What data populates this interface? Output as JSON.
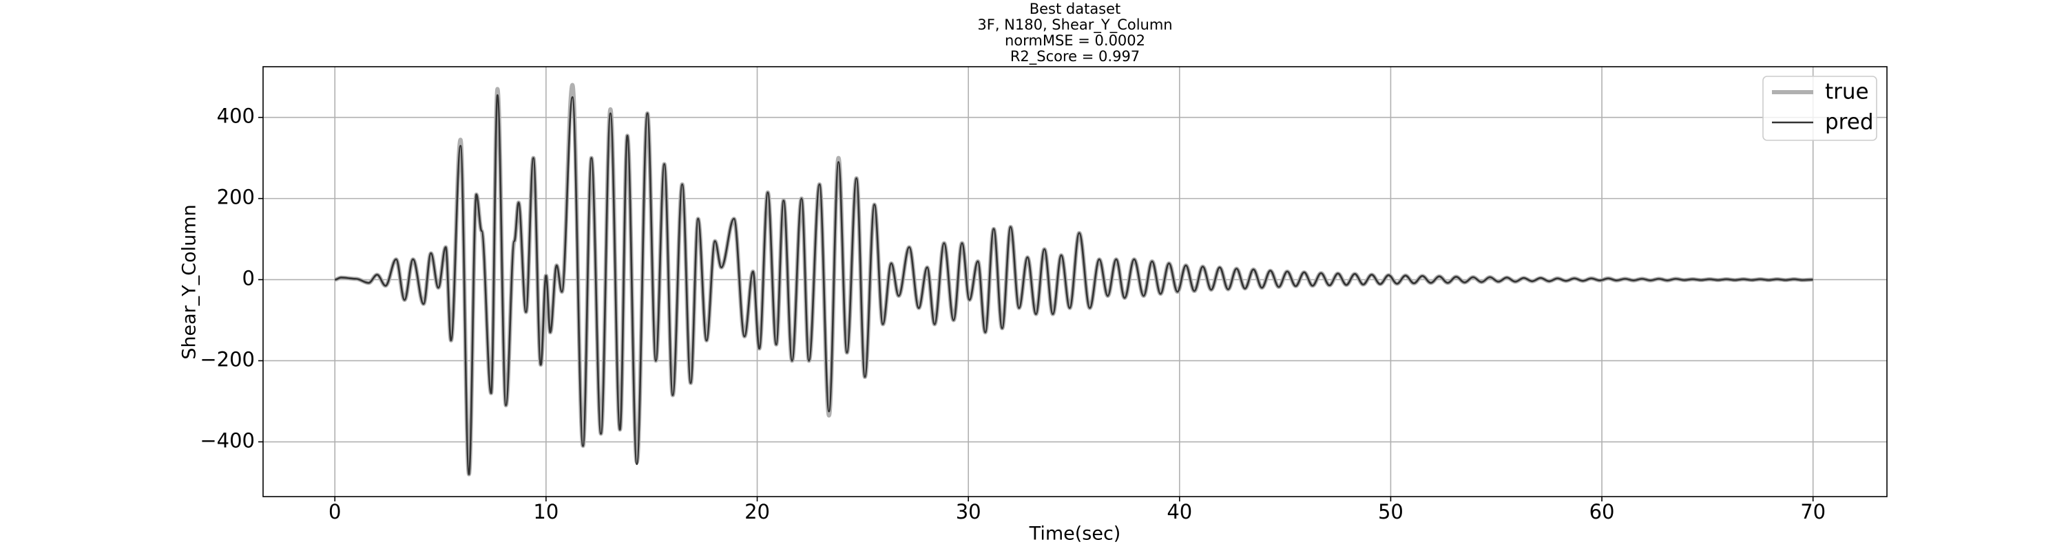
{
  "chart_data": {
    "type": "line",
    "title": [
      "Best dataset",
      "3F, N180, Shear_Y_Column",
      "normMSE = 0.0002",
      "R2_Score = 0.997"
    ],
    "xlabel": "Time(sec)",
    "ylabel": "Shear_Y_Column",
    "x": [
      0,
      0.3,
      1.0,
      1.6,
      2.0,
      2.4,
      2.9,
      3.3,
      3.7,
      4.2,
      4.55,
      4.9,
      5.25,
      5.5,
      5.95,
      6.35,
      6.7,
      6.95,
      7.4,
      7.7,
      8.1,
      8.5,
      8.7,
      9.05,
      9.4,
      9.75,
      10.0,
      10.2,
      10.5,
      10.75,
      11.25,
      11.75,
      12.15,
      12.6,
      13.05,
      13.5,
      13.85,
      14.3,
      14.8,
      15.2,
      15.6,
      16.0,
      16.45,
      16.85,
      17.2,
      17.6,
      18.0,
      18.3,
      18.9,
      19.4,
      19.8,
      20.1,
      20.5,
      20.9,
      21.25,
      21.65,
      22.1,
      22.45,
      22.95,
      23.4,
      23.85,
      24.25,
      24.7,
      25.1,
      25.55,
      25.95,
      26.35,
      26.7,
      27.2,
      27.65,
      28.05,
      28.4,
      28.85,
      29.3,
      29.7,
      30.05,
      30.45,
      30.8,
      31.2,
      31.6,
      32.0,
      32.4,
      32.8,
      33.2,
      33.6,
      34.0,
      34.4,
      34.8,
      35.25,
      35.75,
      36.2,
      36.6,
      37.0,
      37.4,
      37.85,
      38.3,
      38.7,
      39.1,
      39.5,
      39.9,
      40.3,
      40.7,
      41.1,
      41.5,
      41.9,
      42.3,
      42.7,
      43.1,
      43.5,
      43.9,
      44.3,
      44.7,
      45.1,
      45.5,
      45.9,
      46.3,
      46.7,
      47.1,
      47.5,
      47.9,
      48.3,
      48.7,
      49.1,
      49.5,
      49.9,
      50.3,
      50.7,
      51.1,
      51.5,
      51.9,
      52.3,
      52.7,
      53.1,
      53.5,
      53.9,
      54.3,
      54.7,
      55.1,
      55.5,
      55.9,
      56.3,
      56.7,
      57.1,
      57.5,
      57.9,
      58.3,
      58.7,
      59.1,
      59.5,
      59.9,
      60.3,
      60.7,
      61.1,
      61.5,
      61.9,
      62.3,
      62.7,
      63.1,
      63.5,
      63.9,
      64.3,
      64.7,
      65.1,
      65.5,
      65.9,
      66.3,
      66.7,
      67.1,
      67.5,
      67.9,
      68.3,
      68.7,
      69.1,
      69.5,
      70
    ],
    "series": [
      {
        "name": "true",
        "color": "#b0b0b0",
        "values": [
          0,
          5,
          2,
          -8,
          12,
          -15,
          50,
          -50,
          50,
          -60,
          65,
          -20,
          80,
          -150,
          345,
          -480,
          210,
          120,
          -280,
          470,
          -310,
          95,
          190,
          -80,
          300,
          -210,
          10,
          -130,
          35,
          -30,
          480,
          -410,
          300,
          -380,
          420,
          -370,
          355,
          -450,
          410,
          -200,
          285,
          -285,
          235,
          -255,
          150,
          -150,
          95,
          30,
          150,
          -140,
          20,
          -170,
          215,
          -160,
          195,
          -200,
          200,
          -200,
          235,
          -335,
          300,
          -180,
          250,
          -240,
          185,
          -110,
          40,
          -40,
          80,
          -70,
          30,
          -110,
          90,
          -100,
          90,
          -50,
          45,
          -130,
          125,
          -120,
          130,
          -70,
          55,
          -85,
          75,
          -85,
          60,
          -70,
          115,
          -70,
          50,
          -40,
          50,
          -45,
          50,
          -40,
          45,
          -35,
          40,
          -30,
          35,
          -28,
          32,
          -25,
          30,
          -24,
          27,
          -22,
          25,
          -20,
          22,
          -18,
          20,
          -16,
          18,
          -15,
          16,
          -14,
          15,
          -13,
          14,
          -12,
          12,
          -11,
          11,
          -10,
          10,
          -9,
          9,
          -8,
          8,
          -8,
          7,
          -7,
          6,
          -6,
          6,
          -5,
          5,
          -5,
          4,
          -4,
          4,
          -4,
          3,
          -3,
          3,
          -3,
          3,
          -2,
          3,
          -2,
          2,
          -2,
          2,
          -2,
          2,
          -2,
          2,
          -1,
          1,
          -1,
          1,
          -1,
          1,
          -1,
          1,
          -1,
          1,
          -1,
          1,
          -1,
          1,
          -1,
          0
        ]
      },
      {
        "name": "pred",
        "color": "#333333",
        "values": [
          0,
          5,
          2,
          -8,
          12,
          -15,
          50,
          -50,
          50,
          -60,
          65,
          -20,
          80,
          -150,
          330,
          -480,
          210,
          120,
          -280,
          455,
          -310,
          95,
          190,
          -80,
          300,
          -210,
          10,
          -130,
          35,
          -30,
          450,
          -410,
          300,
          -380,
          410,
          -370,
          355,
          -455,
          410,
          -200,
          285,
          -285,
          235,
          -255,
          150,
          -150,
          95,
          30,
          150,
          -140,
          20,
          -170,
          215,
          -160,
          195,
          -200,
          200,
          -200,
          235,
          -325,
          290,
          -180,
          250,
          -240,
          185,
          -110,
          40,
          -40,
          80,
          -70,
          30,
          -110,
          90,
          -100,
          90,
          -50,
          45,
          -130,
          125,
          -120,
          130,
          -70,
          55,
          -85,
          75,
          -85,
          60,
          -70,
          115,
          -70,
          50,
          -40,
          50,
          -45,
          50,
          -40,
          45,
          -35,
          40,
          -30,
          35,
          -28,
          32,
          -25,
          30,
          -24,
          27,
          -22,
          25,
          -20,
          22,
          -18,
          20,
          -16,
          18,
          -15,
          16,
          -14,
          15,
          -13,
          14,
          -12,
          12,
          -11,
          11,
          -10,
          10,
          -9,
          9,
          -8,
          8,
          -8,
          7,
          -7,
          6,
          -6,
          6,
          -5,
          5,
          -5,
          4,
          -4,
          4,
          -4,
          3,
          -3,
          3,
          -3,
          3,
          -2,
          3,
          -2,
          2,
          -2,
          2,
          -2,
          2,
          -2,
          2,
          -1,
          1,
          -1,
          1,
          -1,
          1,
          -1,
          1,
          -1,
          1,
          -1,
          1,
          -1,
          1,
          -1,
          0
        ]
      }
    ],
    "xlim": [
      -3.4,
      73.5
    ],
    "ylim": [
      -535,
      525
    ],
    "xticks": [
      0,
      10,
      20,
      30,
      40,
      50,
      60,
      70
    ],
    "yticks": [
      {
        "value": -400,
        "label": "−400"
      },
      {
        "value": -200,
        "label": "−200"
      },
      0,
      200,
      400
    ],
    "grid": true,
    "legend": "upper right"
  }
}
